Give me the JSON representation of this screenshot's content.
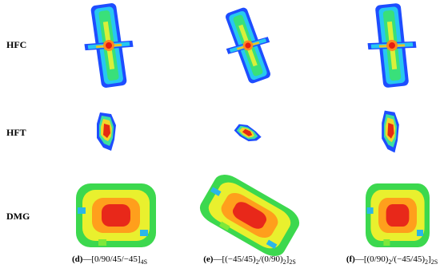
{
  "rows": [
    "HFC",
    "HFT",
    "DMG"
  ],
  "captions": [
    [
      {
        "text": "(d)",
        "style": "bold"
      },
      {
        "text": "—[0/90/45/−45]",
        "style": "normal"
      },
      {
        "text": "4S",
        "style": "sub"
      }
    ],
    [
      {
        "text": "(e)",
        "style": "bold"
      },
      {
        "text": "—[(−45/45)",
        "style": "normal"
      },
      {
        "text": "2",
        "style": "sub"
      },
      {
        "text": "/(0/90)",
        "style": "normal"
      },
      {
        "text": "2",
        "style": "sub"
      },
      {
        "text": "]",
        "style": "normal"
      },
      {
        "text": "2S",
        "style": "sub"
      }
    ],
    [
      {
        "text": "(f)",
        "style": "bold"
      },
      {
        "text": "—[(0/90)",
        "style": "normal"
      },
      {
        "text": "2",
        "style": "sub"
      },
      {
        "text": "/(−45/45)",
        "style": "normal"
      },
      {
        "text": "2",
        "style": "sub"
      },
      {
        "text": "]",
        "style": "normal"
      },
      {
        "text": "2S",
        "style": "sub"
      }
    ]
  ]
}
